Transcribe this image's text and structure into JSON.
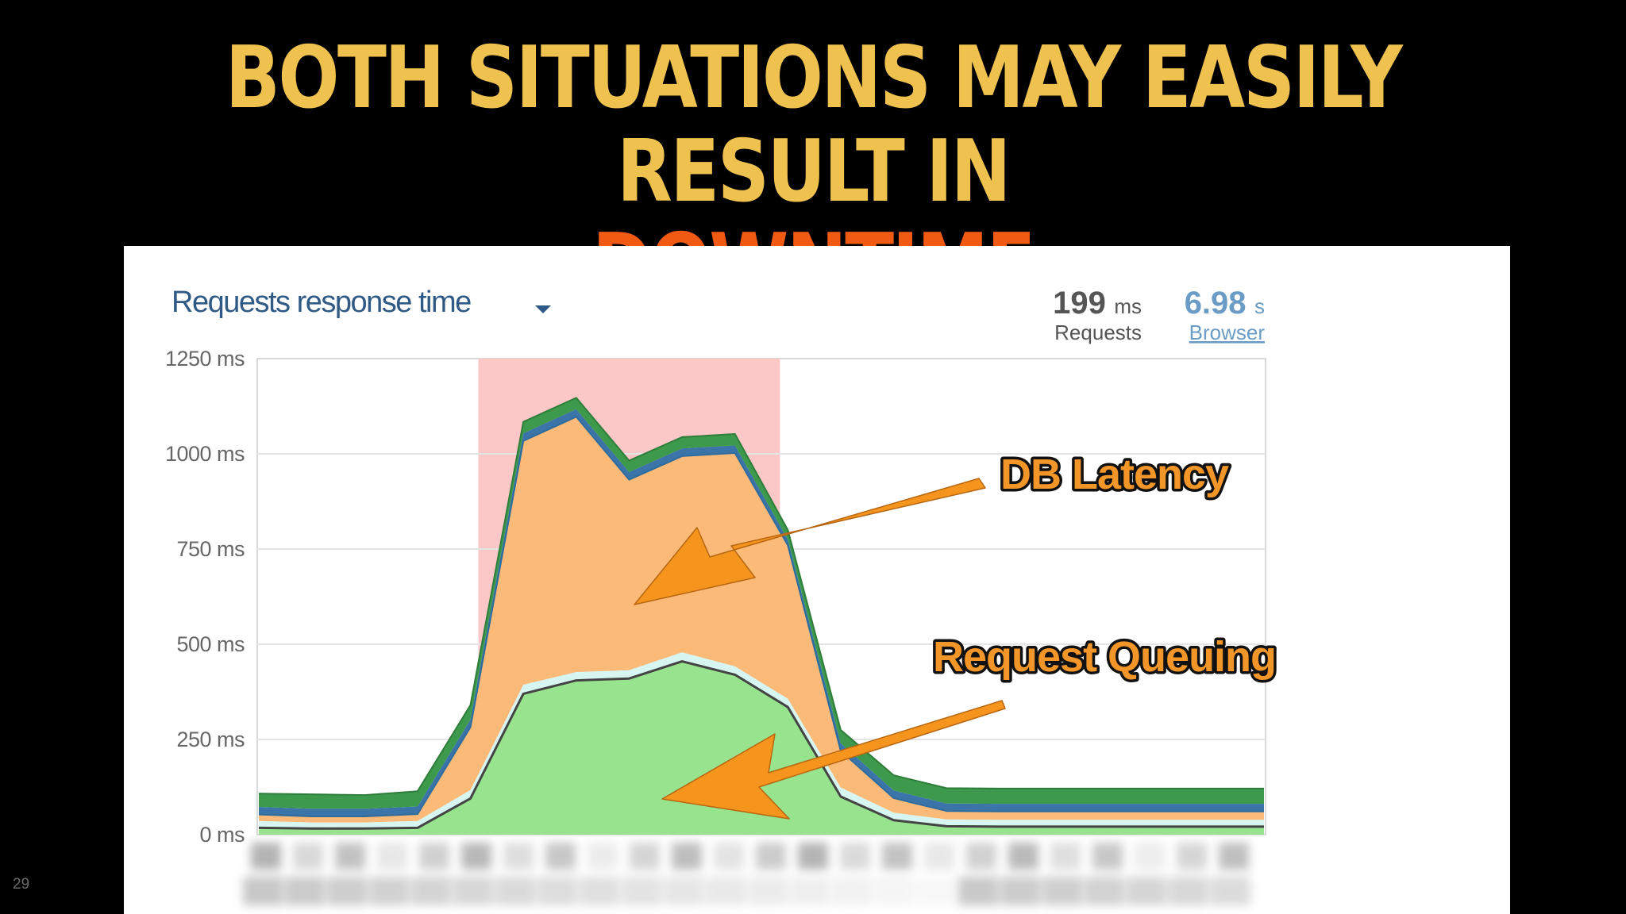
{
  "slide": {
    "title_line1": "BOTH SITUATIONS MAY EASILY RESULT IN",
    "title_line2": "DOWNTIME",
    "number": "29"
  },
  "panel": {
    "title": "Requests response time",
    "requests_value": "199",
    "requests_unit": "ms",
    "requests_label": "Requests",
    "browser_value": "6.98",
    "browser_unit": "s",
    "browser_label": "Browser"
  },
  "annotations": {
    "db_latency": "DB Latency",
    "request_queuing": "Request Queuing"
  },
  "colors": {
    "title": "#efc14f",
    "highlight": "#f05a13",
    "queuing_area": "#98e38e",
    "db_area": "#fbba78",
    "network_band": "#d7f6f2",
    "blue_band": "#3a74a8",
    "green_band": "#3d9a4c",
    "downtime_shade": "#fbc7c7",
    "arrow": "#f6951e"
  },
  "chart_data": {
    "type": "area",
    "stacked": true,
    "yticks": [
      "1250 ms",
      "1000 ms",
      "750 ms",
      "500 ms",
      "250 ms",
      "0 ms"
    ],
    "ylim": [
      0,
      1250
    ],
    "y_unit": "ms",
    "x_labels_obscured": true,
    "highlight_region": {
      "from_index": 4,
      "to_index": 10
    },
    "series": [
      {
        "values": [
          18,
          16,
          16,
          18,
          95,
          370,
          405,
          410,
          455,
          420,
          335,
          100,
          38,
          22,
          21,
          21,
          21,
          21,
          21,
          21
        ]
      },
      {
        "values": [
          18,
          16,
          16,
          18,
          22,
          24,
          22,
          22,
          24,
          22,
          22,
          24,
          20,
          18,
          18,
          18,
          18,
          18,
          18,
          18
        ]
      },
      {
        "values": [
          17,
          16,
          16,
          18,
          165,
          640,
          670,
          500,
          515,
          560,
          403,
          96,
          38,
          22,
          22,
          22,
          22,
          22,
          22,
          22
        ]
      },
      {
        "values": [
          20,
          20,
          20,
          20,
          20,
          20,
          20,
          20,
          20,
          20,
          15,
          20,
          20,
          20,
          20,
          20,
          20,
          20,
          20,
          20
        ]
      },
      {
        "values": [
          35,
          38,
          36,
          40,
          38,
          30,
          30,
          30,
          30,
          30,
          25,
          35,
          40,
          40,
          40,
          40,
          40,
          40,
          40,
          40
        ]
      }
    ]
  }
}
